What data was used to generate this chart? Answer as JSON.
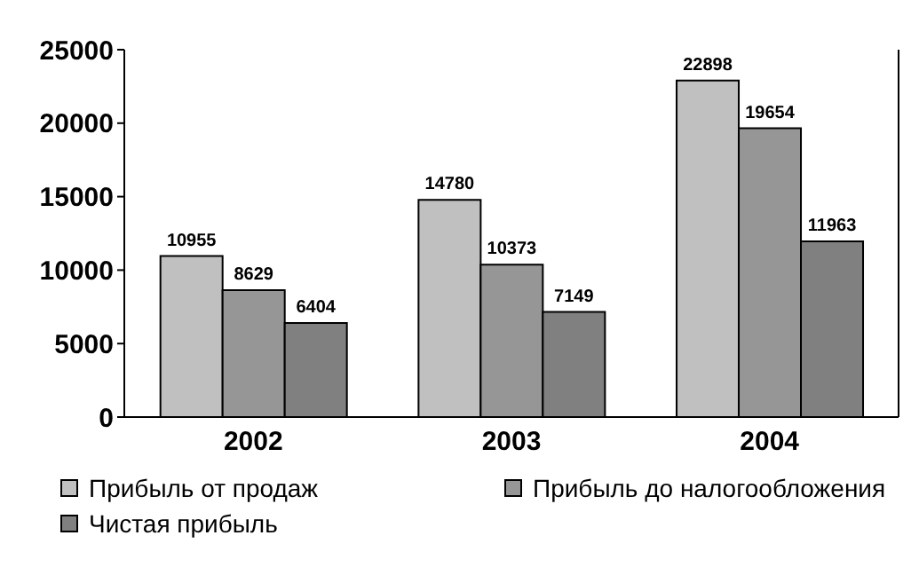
{
  "chart_data": {
    "type": "bar",
    "categories": [
      "2002",
      "2003",
      "2004"
    ],
    "series": [
      {
        "name": "Прибыль от продаж",
        "color": "#c0c0c0",
        "values": [
          10955,
          14780,
          22898
        ]
      },
      {
        "name": "Прибыль до налогообложения",
        "color": "#969696",
        "values": [
          8629,
          10373,
          19654
        ]
      },
      {
        "name": "Чистая прибыль",
        "color": "#808080",
        "values": [
          6404,
          7149,
          11963
        ]
      }
    ],
    "ylim": [
      0,
      25000
    ],
    "yticks": [
      0,
      5000,
      10000,
      15000,
      20000,
      25000
    ],
    "grid": false,
    "legend": "bottom",
    "data_labels": true
  }
}
